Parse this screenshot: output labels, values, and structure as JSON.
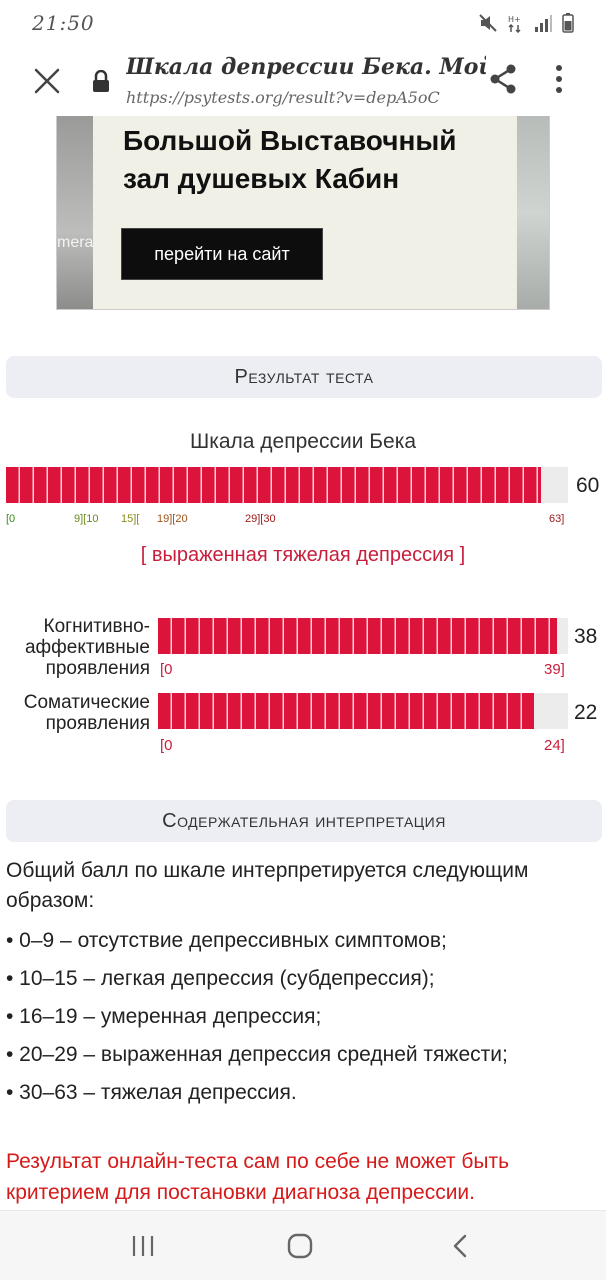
{
  "status_bar": {
    "time": "21:50"
  },
  "browser": {
    "title": "Шкала депрессии Бека. Мой р…",
    "url": "https://psytests.org/result?v=depA5oC"
  },
  "ad": {
    "headline": "Большой Выставочный зал душевых Кабин",
    "watermark": "mera",
    "button_label": "перейти на сайт"
  },
  "result_section": {
    "header": "Результат теста",
    "scale_title": "Шкала депрессии Бека",
    "total": {
      "value": 60,
      "max": 63,
      "value_label": "60"
    },
    "ticks": [
      {
        "text": "[0",
        "color": "#3a8a1a"
      },
      {
        "text": "9][10",
        "color": "#6a8a1a"
      },
      {
        "text": "15][",
        "color": "#8a8a1a"
      },
      {
        "text": "19][20",
        "color": "#a0521a"
      },
      {
        "text": "29][30",
        "color": "#a01a1a"
      },
      {
        "text": "63]",
        "color": "#a01a1a"
      }
    ],
    "verdict": "[ выраженная тяжелая депрессия ]",
    "subscales": [
      {
        "label_line1": "Когнитивно-",
        "label_line2": "аффективные",
        "label_line3": "проявления",
        "value": 38,
        "value_label": "38",
        "max": 39,
        "range_min": "[0",
        "range_max": "39]"
      },
      {
        "label_line1": "Соматические",
        "label_line2": "проявления",
        "value": 22,
        "value_label": "22",
        "max": 24,
        "range_min": "[0",
        "range_max": "24]"
      }
    ]
  },
  "interpretation_section": {
    "header": "Содержательная интерпретация",
    "intro": "Общий балл по шкале интерпретируется следующим образом:",
    "items": [
      "• 0–9 – отсутствие депрессивных симптомов;",
      "• 10–15 – легкая депрессия (субдепрессия);",
      "• 16–19 – умеренная депрессия;",
      "• 20–29 – выраженная депрессия средней тяжести;",
      "• 30–63 – тяжелая депрессия."
    ],
    "note": "Результат онлайн-теста сам по себе не может быть критерием для постановки диагноза депрессии."
  },
  "colors": {
    "accent": "#dc143c",
    "verdict": "#c81e3c",
    "note": "#d61a1a"
  }
}
